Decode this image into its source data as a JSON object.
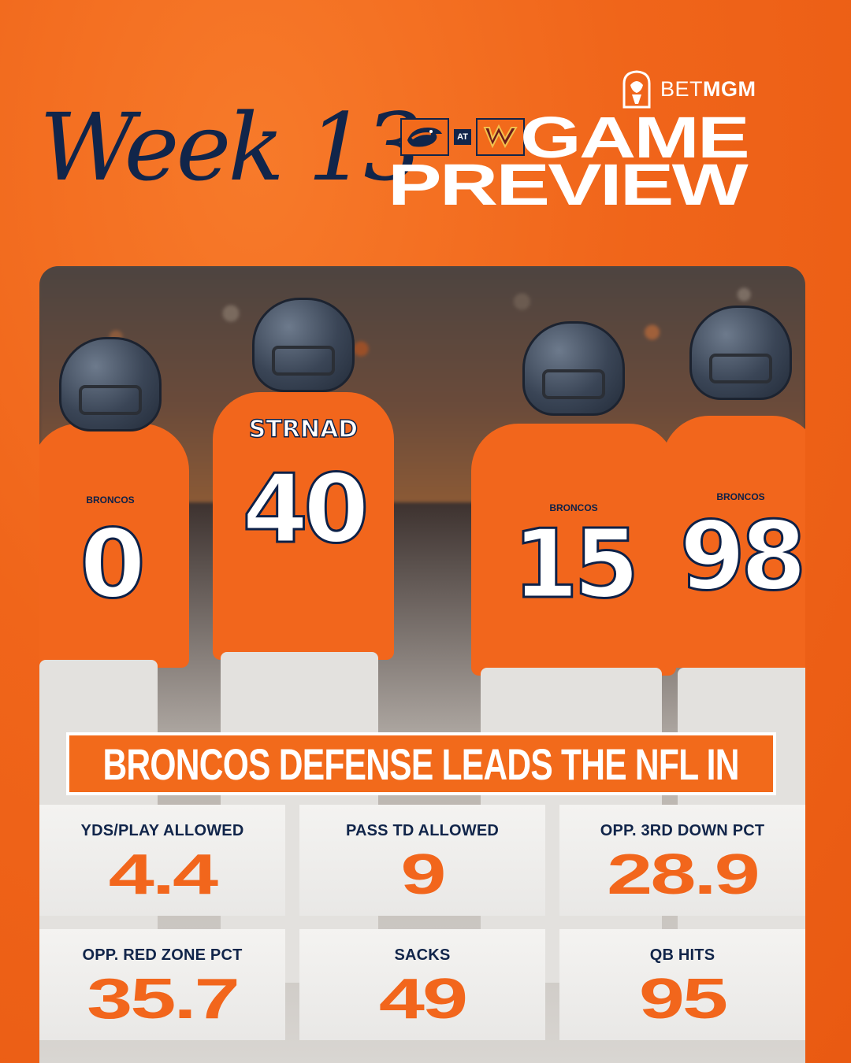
{
  "brand": {
    "part1": "BET",
    "part2": "MGM"
  },
  "header": {
    "week": "Week 13",
    "at": "AT",
    "title_line1": "GAME",
    "title_line2": "PREVIEW"
  },
  "photo": {
    "jersey_name": "STRNAD",
    "numbers": [
      "0",
      "40",
      "15",
      "98"
    ],
    "team_word": "BRONCOS"
  },
  "headline": "BRONCOS DEFENSE LEADS THE NFL IN",
  "stats": [
    {
      "label": "YDS/PLAY ALLOWED",
      "value": "4.4"
    },
    {
      "label": "PASS TD ALLOWED",
      "value": "9"
    },
    {
      "label": "OPP. 3RD DOWN PCT",
      "value": "28.9"
    },
    {
      "label": "OPP. RED ZONE PCT",
      "value": "35.7"
    },
    {
      "label": "SACKS",
      "value": "49"
    },
    {
      "label": "QB HITS",
      "value": "95"
    }
  ],
  "colors": {
    "orange": "#f26a1b",
    "navy": "#11254a",
    "white": "#ffffff"
  }
}
